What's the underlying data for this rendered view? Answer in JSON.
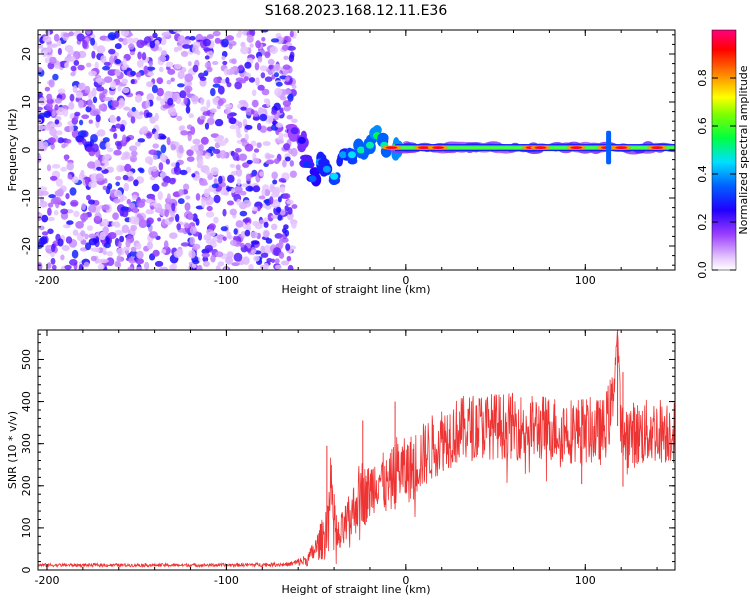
{
  "title": "S168.2023.168.12.11.E36",
  "chart_data": [
    {
      "type": "heatmap",
      "title": "S168.2023.168.12.11.E36",
      "xlabel": "Height of straight line (km)",
      "ylabel": "Frequency (Hz)",
      "xlim": [
        -205,
        150
      ],
      "ylim": [
        -25,
        25
      ],
      "x_ticks": [
        -200,
        -100,
        0,
        100
      ],
      "y_ticks": [
        -20,
        -10,
        0,
        10,
        20
      ],
      "noise_region": {
        "x_range": [
          -205,
          -62
        ],
        "y_range": [
          -25,
          25
        ],
        "typical_amplitude": [
          0.0,
          0.25
        ]
      },
      "transition_region": {
        "points": [
          {
            "x": -62,
            "y": 4,
            "amplitude": 0.2
          },
          {
            "x": -58,
            "y": 2,
            "amplitude": 0.25
          },
          {
            "x": -55,
            "y": -3,
            "amplitude": 0.3
          },
          {
            "x": -52,
            "y": -6,
            "amplitude": 0.35
          },
          {
            "x": -48,
            "y": -2.5,
            "amplitude": 0.4
          },
          {
            "x": -44,
            "y": -4,
            "amplitude": 0.4
          },
          {
            "x": -40,
            "y": -5.5,
            "amplitude": 0.45
          },
          {
            "x": -35,
            "y": -1,
            "amplitude": 0.4
          },
          {
            "x": -30,
            "y": -1,
            "amplitude": 0.45
          },
          {
            "x": -25,
            "y": 0,
            "amplitude": 0.5
          },
          {
            "x": -20,
            "y": 1,
            "amplitude": 0.5
          },
          {
            "x": -16,
            "y": 3,
            "amplitude": 0.55
          },
          {
            "x": -12,
            "y": 1,
            "amplitude": 0.5
          },
          {
            "x": -6,
            "y": 0.5,
            "amplitude": 0.55
          }
        ]
      },
      "signal_band": {
        "x_range": [
          -6,
          150
        ],
        "center_frequency": 0.5,
        "peak_amplitude": 1.0
      },
      "signal_peaks_x": [
        -8,
        10,
        18,
        70,
        75,
        95,
        112,
        120,
        140
      ],
      "spur_features": [
        {
          "x": 113,
          "y_range": [
            -3,
            4
          ]
        }
      ],
      "colorbar": {
        "label": "Normalized spectral amplitude",
        "range": [
          0.0,
          1.0
        ],
        "ticks": [
          0.0,
          0.2,
          0.4,
          0.6,
          0.8
        ]
      }
    },
    {
      "type": "line",
      "xlabel": "Height of straight line (km)",
      "ylabel": "SNR (10 * v/v)",
      "xlim": [
        -205,
        150
      ],
      "ylim": [
        0,
        570
      ],
      "x_ticks": [
        -200,
        -100,
        0,
        100
      ],
      "y_ticks": [
        0,
        100,
        200,
        300,
        400,
        500
      ],
      "color": "#ee3333",
      "series": [
        {
          "x": [
            -205,
            -150,
            -100,
            -65,
            -55,
            -50,
            -45,
            -42,
            -40,
            -38,
            -35,
            -32,
            -28,
            -25,
            -22,
            -18,
            -15,
            -10,
            -5,
            0,
            5,
            10,
            15,
            20,
            25,
            30,
            40,
            50,
            60,
            70,
            80,
            90,
            100,
            110,
            115,
            118,
            120,
            130,
            140,
            150
          ],
          "y": [
            12,
            12,
            12,
            14,
            25,
            55,
            90,
            200,
            150,
            70,
            100,
            120,
            160,
            200,
            180,
            210,
            230,
            200,
            250,
            240,
            260,
            280,
            300,
            320,
            330,
            340,
            350,
            350,
            350,
            345,
            345,
            340,
            340,
            335,
            400,
            570,
            330,
            330,
            340,
            340
          ],
          "noise_amplitude": [
            4,
            4,
            4,
            5,
            15,
            30,
            60,
            80,
            60,
            50,
            50,
            60,
            70,
            80,
            70,
            70,
            70,
            70,
            80,
            80,
            80,
            80,
            80,
            80,
            80,
            80,
            80,
            80,
            80,
            80,
            80,
            80,
            80,
            80,
            80,
            10,
            80,
            80,
            80,
            80
          ],
          "spikes": [
            {
              "x": -44,
              "y": 295
            },
            {
              "x": -24,
              "y": 355
            },
            {
              "x": -6,
              "y": 400
            },
            {
              "x": 98,
              "y": 405
            },
            {
              "x": 118,
              "y": 570
            },
            {
              "x": 121,
              "y": 470
            }
          ]
        }
      ]
    }
  ]
}
